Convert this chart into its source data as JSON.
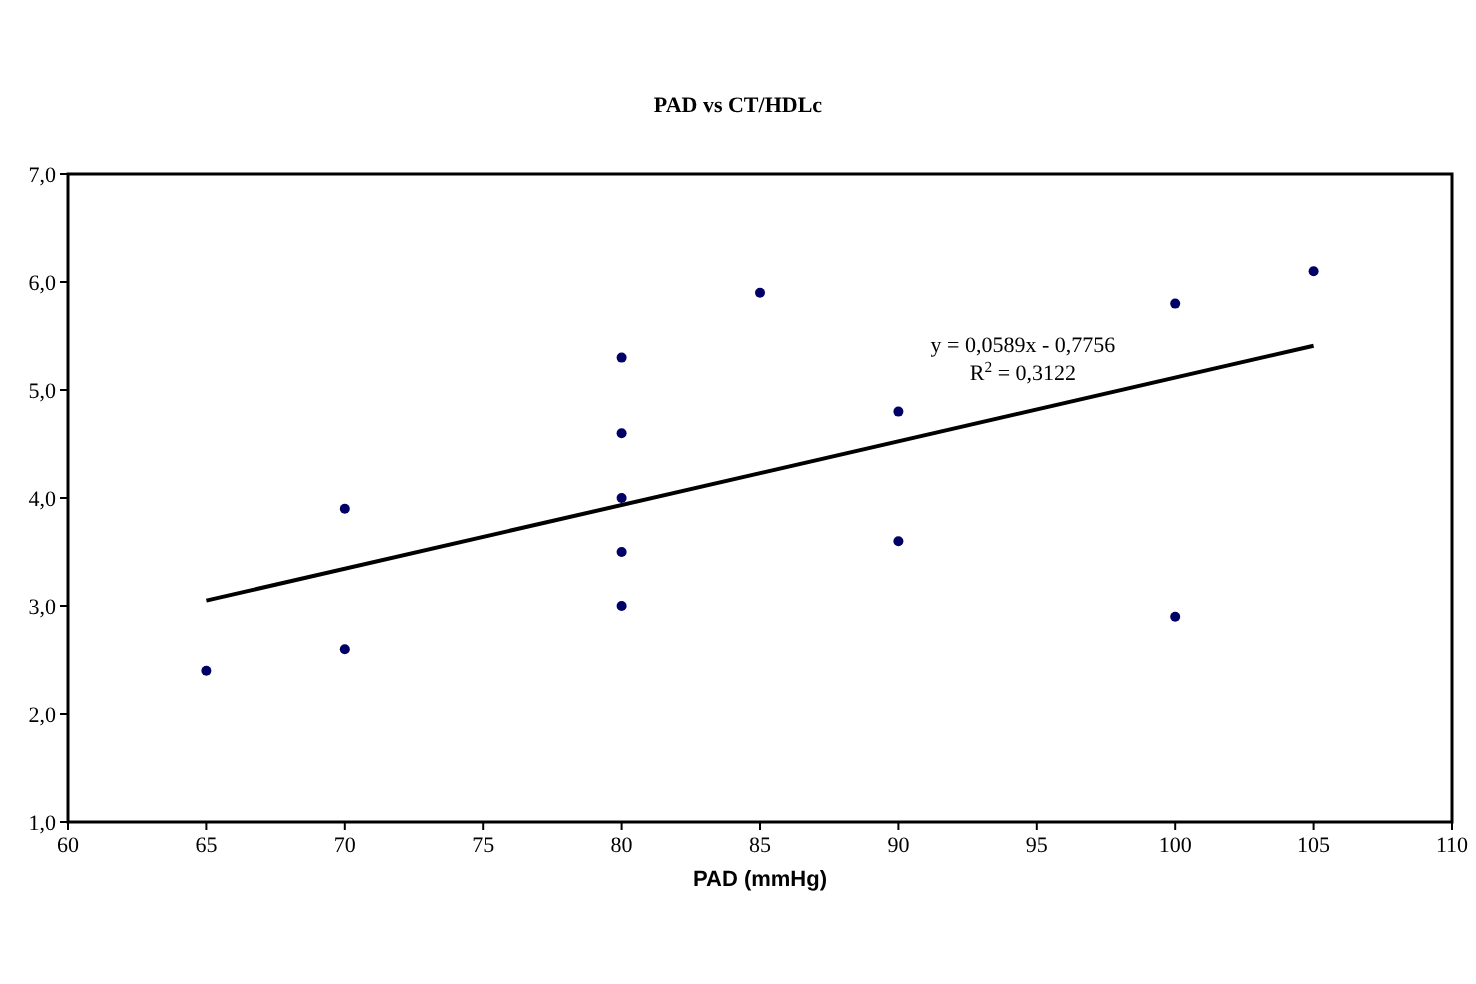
{
  "chart_data": {
    "type": "scatter",
    "title": "PAD vs CT/HDLc",
    "xlabel": "PAD (mmHg)",
    "xlim": [
      60,
      110
    ],
    "xticks": [
      60,
      65,
      70,
      75,
      80,
      85,
      90,
      95,
      100,
      105,
      110
    ],
    "ylim": [
      1,
      7
    ],
    "yticks": [
      {
        "value": 1,
        "label": "1,0"
      },
      {
        "value": 2,
        "label": "2,0"
      },
      {
        "value": 3,
        "label": "3,0"
      },
      {
        "value": 4,
        "label": "4,0"
      },
      {
        "value": 5,
        "label": "5,0"
      },
      {
        "value": 6,
        "label": "6,0"
      },
      {
        "value": 7,
        "label": "7,0"
      }
    ],
    "grid": false,
    "marker": "circle",
    "series": [
      {
        "color": "#000066",
        "x": [
          65,
          70,
          70,
          80,
          80,
          80,
          80,
          80,
          85,
          90,
          90,
          100,
          100,
          105
        ],
        "values": [
          2.4,
          2.6,
          3.9,
          3.0,
          3.5,
          4.0,
          4.6,
          5.3,
          5.9,
          4.8,
          3.6,
          5.8,
          2.9,
          6.1
        ]
      },
      {
        "type": "line",
        "color": "#000000",
        "line_style": "solid",
        "marker": "none",
        "x": [
          65,
          105
        ],
        "values": [
          3.05,
          5.41
        ]
      }
    ],
    "annotations": [
      "y = 0,0589x - 0,7756",
      "R$^{2}$ = 0,3122"
    ]
  }
}
